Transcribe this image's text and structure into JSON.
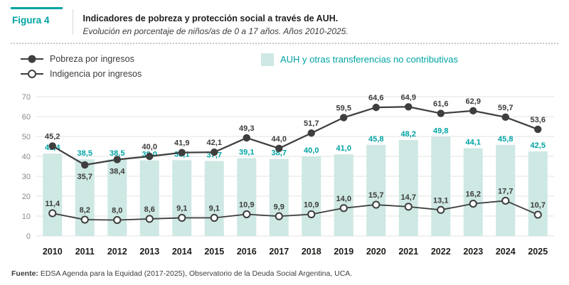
{
  "header": {
    "figure_label": "Figura 4",
    "title": "Indicadores de pobreza y protección social a través de AUH.",
    "subtitle": "Evolución en porcentaje de niños/as de 0 a 17 años. Años 2010-2025."
  },
  "legend": {
    "pobreza": "Pobreza por ingresos",
    "indigencia": "Indigencia por ingresos",
    "auh": "AUH y otras transferencias no contributivas"
  },
  "colors": {
    "accent_teal": "#00A3A3",
    "bar_fill": "#CEE8E4",
    "bar_label": "#00A3A3",
    "line_dark": "#3E3E3E",
    "value_label": "#3C3C3B",
    "grid": "#E3E3E3",
    "axis_tick": "#8A8A8A",
    "year_label": "#1D1D1B"
  },
  "chart_data": {
    "type": "bar+line",
    "title": "Indicadores de pobreza y protección social a través de AUH",
    "categories": [
      "2010",
      "2011",
      "2012",
      "2013",
      "2014",
      "2015",
      "2016",
      "2017",
      "2018",
      "2019",
      "2020",
      "2021",
      "2022",
      "2023",
      "2024",
      "2025"
    ],
    "bars": {
      "name": "AUH y otras transferencias no contributivas",
      "values": [
        41.4,
        38.5,
        38.5,
        38.0,
        38.1,
        37.7,
        39.1,
        38.7,
        40.0,
        41.0,
        45.8,
        48.2,
        49.8,
        44.1,
        45.8,
        42.5
      ]
    },
    "lines": [
      {
        "name": "Pobreza por ingresos",
        "marker": "filled",
        "values": [
          45.2,
          35.7,
          38.4,
          40.0,
          41.9,
          42.1,
          49.3,
          44.0,
          51.7,
          59.5,
          64.6,
          64.9,
          61.6,
          62.9,
          59.7,
          53.6
        ]
      },
      {
        "name": "Indigencia por ingresos",
        "marker": "open",
        "values": [
          11.4,
          8.2,
          8.0,
          8.6,
          9.1,
          9.1,
          10.9,
          9.9,
          10.9,
          14.0,
          15.7,
          14.7,
          13.1,
          16.2,
          17.7,
          10.7
        ]
      }
    ],
    "ylim": [
      0,
      70
    ],
    "ytick_step": 10,
    "grid": true,
    "decimal_separator": ",",
    "legend_position": "top"
  },
  "footer": {
    "source_label": "Fuente:",
    "source_text": " EDSA Agenda para la Equidad (2017-2025), Observatorio de la Deuda Social Argentina, UCA."
  }
}
